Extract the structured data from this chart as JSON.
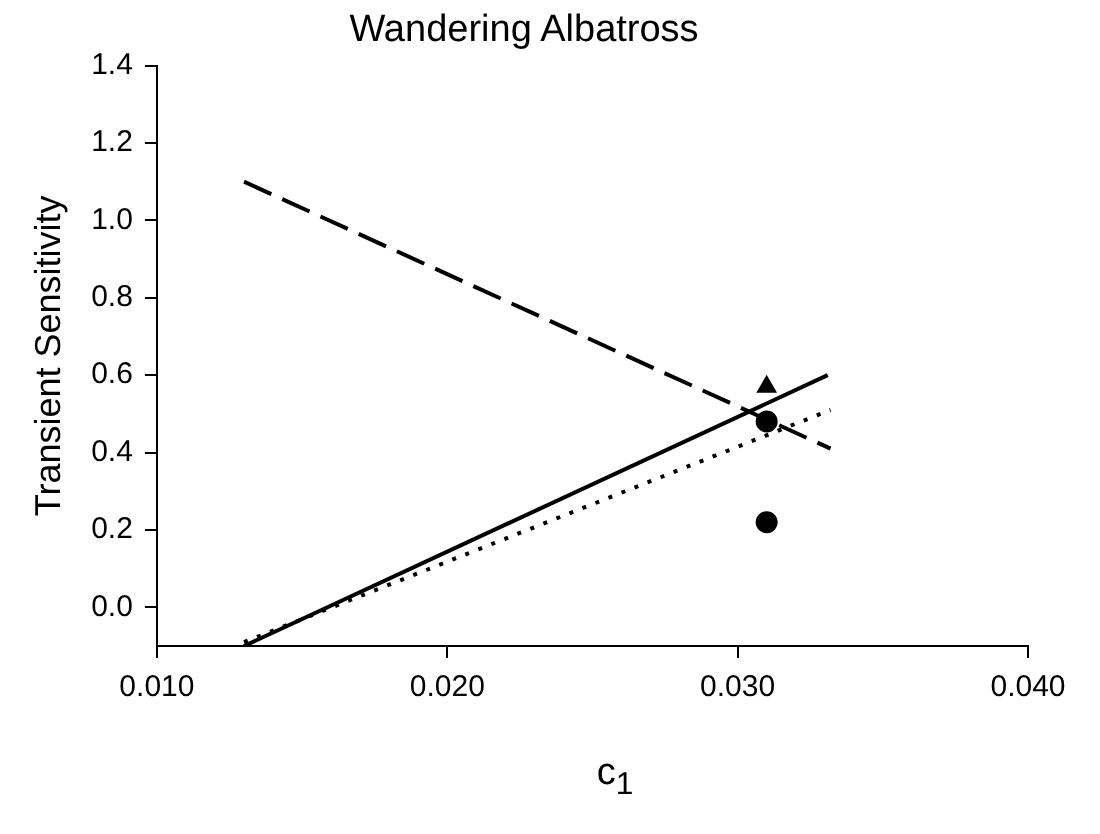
{
  "chart_data": {
    "type": "line",
    "title": "Wandering Albatross",
    "xlabel": "c$_{1}$",
    "ylabel": "Transient Sensitivity",
    "xlim": [
      0.01,
      0.04
    ],
    "xticks": [
      {
        "value": 0.01,
        "label": "0.010"
      },
      {
        "value": 0.02,
        "label": "0.020"
      },
      {
        "value": 0.03,
        "label": "0.030"
      },
      {
        "value": 0.04,
        "label": "0.040"
      }
    ],
    "ylim": [
      -0.1,
      1.4
    ],
    "yticks": [
      {
        "value": 0,
        "label": "0.0"
      },
      {
        "value": 0.2,
        "label": "0.2"
      },
      {
        "value": 0.4,
        "label": "0.4"
      },
      {
        "value": 0.6,
        "label": "0.6"
      },
      {
        "value": 0.8,
        "label": "0.8"
      },
      {
        "value": 1.0,
        "label": "1.0"
      },
      {
        "value": 1.2,
        "label": "1.2"
      },
      {
        "value": 1.4,
        "label": "1.4"
      }
    ],
    "grid": false,
    "legend": false,
    "series": [
      {
        "color": "#000000",
        "line_style": "dashed",
        "marker": "none",
        "x": [
          0.013,
          0.0332
        ],
        "values": [
          1.1,
          0.41
        ]
      },
      {
        "color": "#000000",
        "line_style": "solid",
        "marker": "none",
        "x": [
          0.013,
          0.0331
        ],
        "values": [
          -0.1,
          0.6
        ]
      },
      {
        "color": "#000000",
        "line_style": "dotted",
        "marker": "none",
        "x": [
          0.013,
          0.0332
        ],
        "values": [
          -0.09,
          0.51
        ]
      },
      {
        "type": "scatter",
        "color": "#000000",
        "marker": "triangle",
        "x": [
          0.031
        ],
        "values": [
          0.57
        ]
      },
      {
        "type": "scatter",
        "color": "#000000",
        "marker": "circle",
        "x": [
          0.031,
          0.031
        ],
        "values": [
          0.48,
          0.22
        ]
      }
    ]
  }
}
